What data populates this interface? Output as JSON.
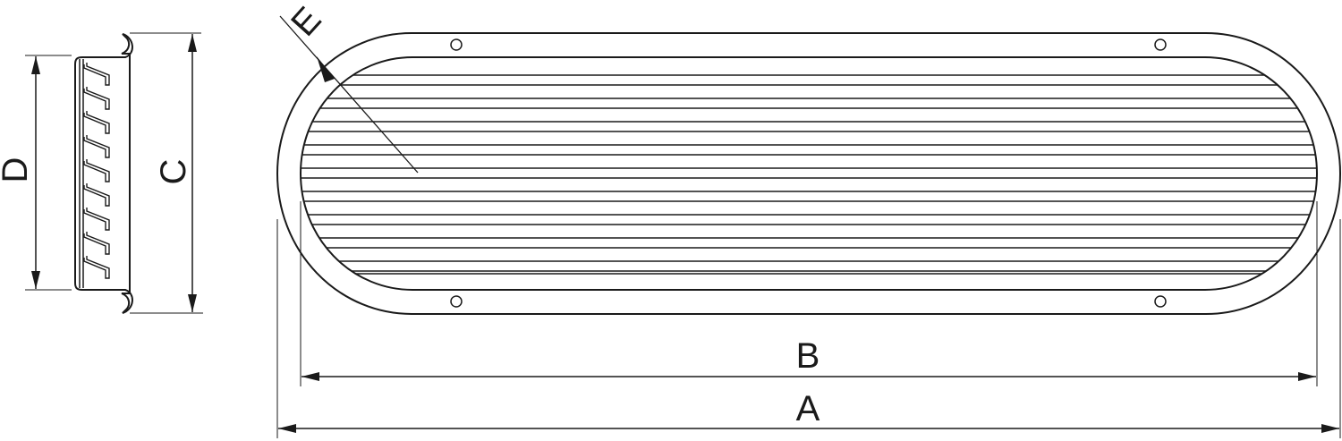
{
  "labels": {
    "A": "A",
    "B": "B",
    "C": "C",
    "D": "D",
    "E": "E"
  },
  "colors": {
    "body": "#c6c7c9",
    "line": "#1a1a1a",
    "background": "#ffffff"
  },
  "grille_slats": 9,
  "mounting_holes": 4
}
